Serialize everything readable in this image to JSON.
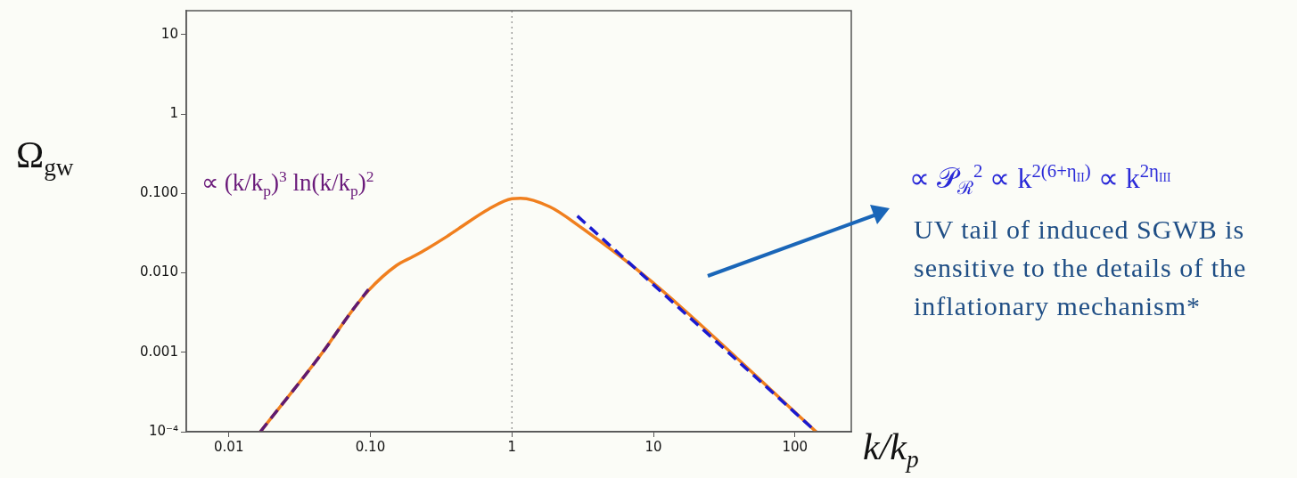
{
  "chart_data": {
    "type": "line",
    "xlabel": "k/k$_{p}$",
    "ylabel": "Ω$_{gw}$",
    "log": "xy",
    "xlim": [
      0.005,
      250
    ],
    "ylim": [
      0.0001,
      20
    ],
    "xticks": [
      {
        "value": 0.01,
        "label": "0.01"
      },
      {
        "value": 0.1,
        "label": "0.10"
      },
      1,
      10,
      100
    ],
    "yticks": [
      {
        "value": 0.0001,
        "label": "10⁻⁴"
      },
      {
        "value": 0.001,
        "label": "0.001"
      },
      {
        "value": 0.01,
        "label": "0.010"
      },
      {
        "value": 0.1,
        "label": "0.100"
      },
      1,
      10
    ],
    "grid": false,
    "legend": false,
    "marker": "none",
    "series": [
      {
        "color": "#f07f1e",
        "line_style": "solid",
        "x": [
          0.0167,
          0.046,
          0.073,
          0.097,
          0.152,
          0.2,
          0.25,
          0.34,
          0.42,
          0.68,
          1,
          1.15,
          1.85,
          3.04,
          9.6,
          141
        ],
        "values": [
          0.0001,
          0.001,
          0.0032,
          0.006,
          0.0123,
          0.016,
          0.02,
          0.028,
          0.036,
          0.063,
          0.086,
          0.087,
          0.068,
          0.038,
          0.0079,
          0.0001
        ]
      },
      {
        "color": "#5e1a72",
        "line_style": "dashed",
        "x": [
          0.0167,
          0.046,
          0.073,
          0.097
        ],
        "values": [
          0.0001,
          0.001,
          0.0032,
          0.0062
        ]
      },
      {
        "color": "#1a1ad0",
        "line_style": "dashed",
        "x": [
          2.9,
          141
        ],
        "values": [
          0.052,
          0.0001
        ]
      }
    ],
    "ref_lines": [
      {
        "axis": "x",
        "value": 1,
        "color": "#888888",
        "line_style": "dotted"
      }
    ],
    "annotations": [
      "∝ (k/k$_{p}$)$^{3}$ ln(k/k$_{p}$)$^{2}$",
      "∝ 𝒫$_{ℛ}$$^{2}$ ∝ k$^{2(6+η}$$_{II}$$^{)}$ ∝ k$^{2η}$$_{III}$",
      "UV tail of induced SGWB is sensitive to the details of the inflationary mechanism*"
    ]
  }
}
